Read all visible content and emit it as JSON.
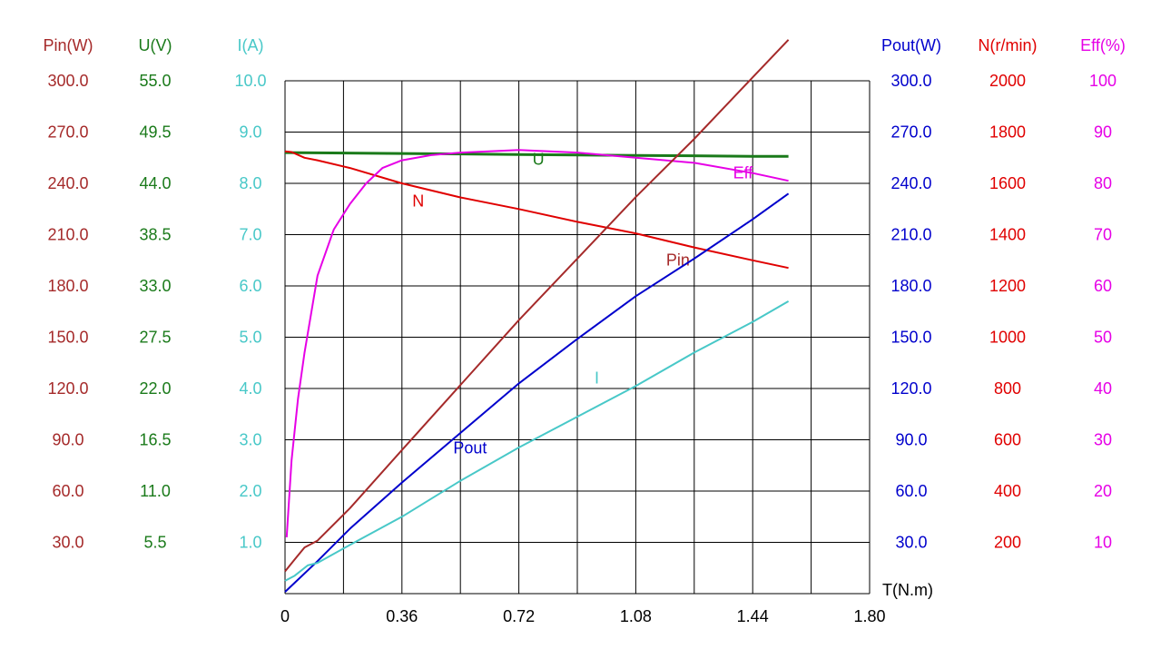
{
  "chart_data": {
    "type": "line",
    "x_axis": {
      "label": "T(N.m)",
      "range": [
        0,
        1.8
      ],
      "ticks": [
        "0",
        "0.36",
        "0.72",
        "1.08",
        "1.44",
        "1.80"
      ],
      "color": "#000000"
    },
    "axes": [
      {
        "id": "pin",
        "title": "Pin(W)",
        "color": "#a52a2a",
        "range": [
          0,
          300
        ],
        "ticks": [
          "30.0",
          "60.0",
          "90.0",
          "120.0",
          "150.0",
          "180.0",
          "210.0",
          "240.0",
          "270.0",
          "300.0"
        ]
      },
      {
        "id": "u",
        "title": "U(V)",
        "color": "#1a7a1a",
        "range": [
          0,
          55
        ],
        "ticks": [
          "5.5",
          "11.0",
          "16.5",
          "22.0",
          "27.5",
          "33.0",
          "38.5",
          "44.0",
          "49.5",
          "55.0"
        ]
      },
      {
        "id": "i",
        "title": "I(A)",
        "color": "#48c8c8",
        "range": [
          0,
          10
        ],
        "ticks": [
          "1.0",
          "2.0",
          "3.0",
          "4.0",
          "5.0",
          "6.0",
          "7.0",
          "8.0",
          "9.0",
          "10.0"
        ]
      },
      {
        "id": "pout",
        "title": "Pout(W)",
        "color": "#0000cc",
        "range": [
          0,
          300
        ],
        "ticks": [
          "30.0",
          "60.0",
          "90.0",
          "120.0",
          "150.0",
          "180.0",
          "210.0",
          "240.0",
          "270.0",
          "300.0"
        ]
      },
      {
        "id": "n",
        "title": "N(r/min)",
        "color": "#e00000",
        "range": [
          0,
          2000
        ],
        "ticks": [
          "200",
          "400",
          "600",
          "800",
          "1000",
          "1200",
          "1400",
          "1600",
          "1800",
          "2000"
        ]
      },
      {
        "id": "eff",
        "title": "Eff(%)",
        "color": "#e600e6",
        "range": [
          0,
          100
        ],
        "ticks": [
          "10",
          "20",
          "30",
          "40",
          "50",
          "60",
          "70",
          "80",
          "90",
          "100"
        ]
      }
    ],
    "grid": true,
    "series": [
      {
        "name": "U",
        "axis": "u",
        "color": "#1a7a1a",
        "label_at": [
          0.78,
          46.0
        ],
        "x": [
          0,
          0.36,
          0.72,
          1.08,
          1.44,
          1.55
        ],
        "y": [
          47.3,
          47.2,
          47.1,
          47.0,
          46.9,
          46.9
        ]
      },
      {
        "name": "N",
        "axis": "n",
        "color": "#e00000",
        "label_at": [
          0.41,
          1510
        ],
        "x": [
          0,
          0.02,
          0.06,
          0.1,
          0.2,
          0.36,
          0.54,
          0.72,
          0.9,
          1.08,
          1.26,
          1.44,
          1.55
        ],
        "y": [
          1725,
          1722,
          1700,
          1690,
          1660,
          1600,
          1545,
          1500,
          1450,
          1405,
          1350,
          1300,
          1270
        ]
      },
      {
        "name": "Eff",
        "axis": "eff",
        "color": "#e600e6",
        "label_at": [
          1.41,
          81
        ],
        "x": [
          0.005,
          0.02,
          0.04,
          0.06,
          0.1,
          0.15,
          0.2,
          0.25,
          0.3,
          0.36,
          0.45,
          0.54,
          0.72,
          0.9,
          1.08,
          1.26,
          1.44,
          1.55
        ],
        "y": [
          11,
          26,
          38,
          47,
          62,
          71,
          76,
          80,
          83,
          84.5,
          85.5,
          86,
          86.5,
          86,
          85,
          84,
          82,
          80.5
        ]
      },
      {
        "name": "Pin",
        "axis": "pin",
        "color": "#a52a2a",
        "label_at": [
          1.21,
          192
        ],
        "x": [
          0,
          0.03,
          0.06,
          0.1,
          0.2,
          0.36,
          0.54,
          0.72,
          0.9,
          1.08,
          1.26,
          1.44,
          1.55
        ],
        "y": [
          13,
          20,
          27,
          31,
          50,
          84,
          122,
          160,
          196,
          232,
          266,
          302,
          324
        ]
      },
      {
        "name": "Pout",
        "axis": "pout",
        "color": "#0000cc",
        "label_at": [
          0.57,
          82
        ],
        "x": [
          0,
          0.1,
          0.2,
          0.36,
          0.54,
          0.72,
          0.9,
          1.08,
          1.26,
          1.44,
          1.55
        ],
        "y": [
          1,
          19,
          38,
          65,
          94,
          123,
          149,
          174,
          196,
          219,
          234
        ]
      },
      {
        "name": "I",
        "axis": "i",
        "color": "#48c8c8",
        "label_at": [
          0.96,
          4.1
        ],
        "x": [
          0,
          0.03,
          0.07,
          0.1,
          0.2,
          0.36,
          0.54,
          0.72,
          0.9,
          1.08,
          1.26,
          1.44,
          1.55
        ],
        "y": [
          0.25,
          0.35,
          0.55,
          0.6,
          0.95,
          1.5,
          2.2,
          2.85,
          3.45,
          4.05,
          4.7,
          5.3,
          5.7
        ]
      }
    ]
  }
}
